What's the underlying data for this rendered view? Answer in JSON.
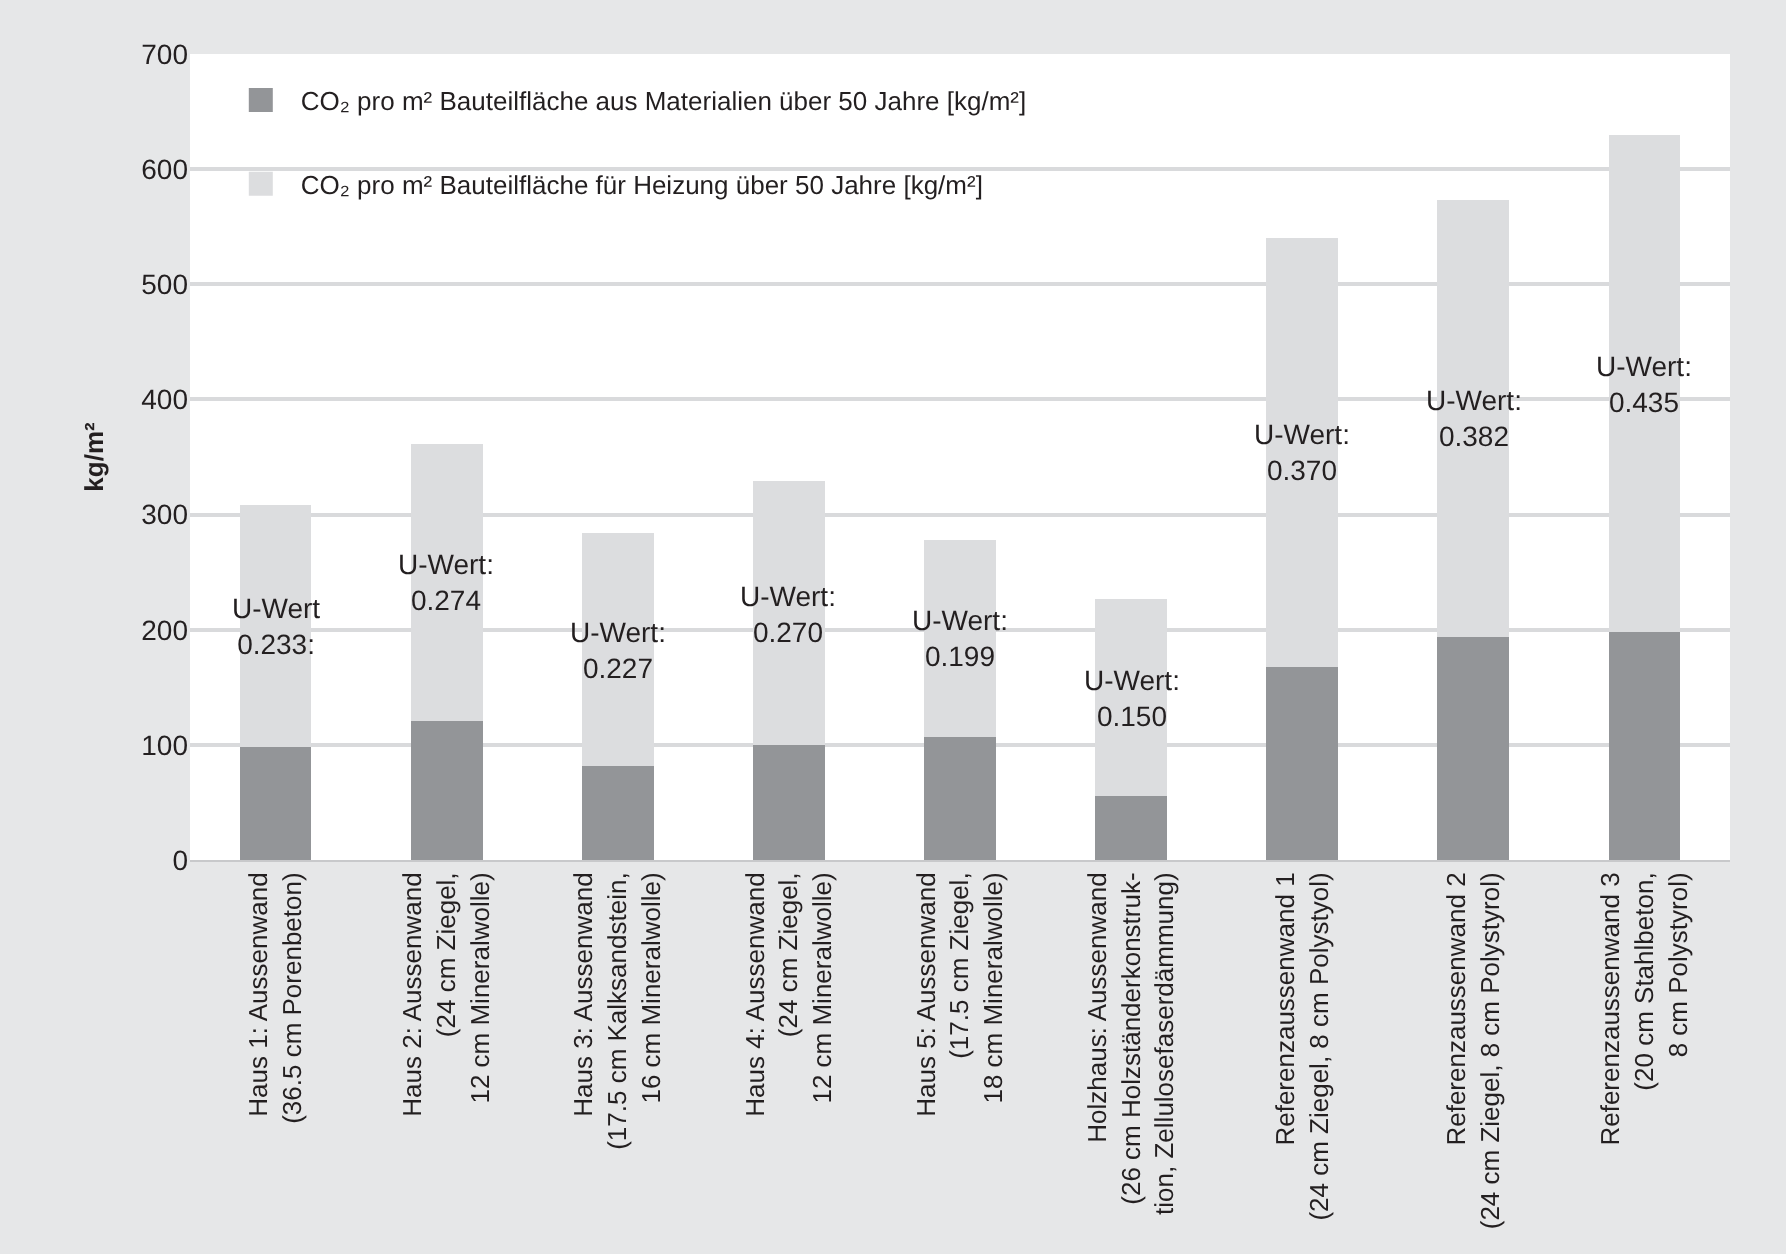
{
  "chart_data": {
    "type": "bar",
    "stacked": true,
    "ylabel": "kg/m²",
    "categories": [
      "Haus 1: Aussenwand\n(36.5 cm Porenbeton)",
      "Haus 2: Aussenwand\n(24 cm Ziegel,\n12 cm Mineralwolle)",
      "Haus 3: Aussenwand\n(17.5 cm Kalksandstein,\n16 cm Mineralwolle)",
      "Haus 4: Aussenwand\n(24 cm Ziegel,\n12 cm Mineralwolle)",
      "Haus 5: Aussenwand\n(17.5 cm Ziegel,\n18 cm Mineralwolle)",
      "Holzhaus: Aussenwand\n(26 cm Holzständerkonstruk-\ntion, Zellulosefaserdämmung)",
      "Referenzaussenwand 1\n(24 cm Ziegel, 8 cm Polystyol)",
      "Referenzaussenwand 2\n(24 cm Ziegel, 8 cm Polystyrol)",
      "Referenzaussenwand 3\n(20 cm Stahlbeton,\n8 cm Polystyrol)"
    ],
    "series": [
      {
        "name": "CO₂ pro m² Bauteilfläche aus Materialien über 50 Jahre [kg/m²]",
        "color": "#939598",
        "values": [
          98,
          121,
          82,
          100,
          107,
          56,
          168,
          194,
          198
        ]
      },
      {
        "name": "CO₂ pro m² Bauteilfläche für Heizung über 50 Jahre [kg/m²]",
        "color": "#dcdddf",
        "values": [
          210,
          240,
          202,
          229,
          171,
          171,
          372,
          379,
          432
        ]
      }
    ],
    "ylim": [
      0,
      700
    ],
    "yticks": [
      0,
      100,
      200,
      300,
      400,
      500,
      600,
      700
    ],
    "grid": "y",
    "legend": "top left",
    "annotations": [
      "U-Wert\n0.233:",
      "U-Wert:\n0.274",
      "U-Wert:\n0.227",
      "U-Wert:\n0.270",
      "U-Wert:\n0.199",
      "U-Wert:\n0.150",
      "U-Wert:\n0.370",
      "U-Wert:\n0.382",
      "U-Wert:\n0.435"
    ]
  }
}
